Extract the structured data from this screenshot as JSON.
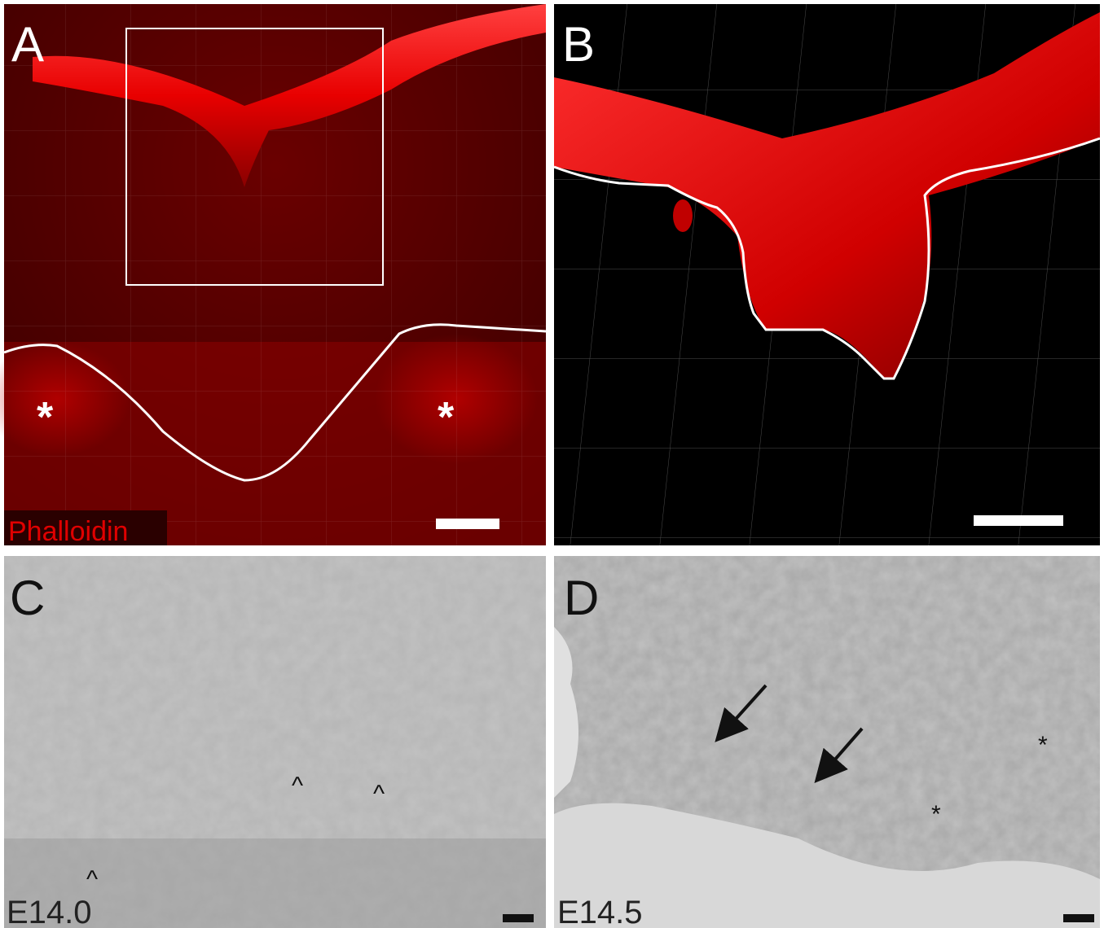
{
  "panels": [
    {
      "label": "A",
      "stain": "Phalloidin",
      "annotations": [
        "*",
        "*"
      ]
    },
    {
      "label": "B"
    },
    {
      "label": "C",
      "stage": "E14.0",
      "annotations": [
        "^",
        "^",
        "^"
      ]
    },
    {
      "label": "D",
      "stage": "E14.5",
      "annotations": [
        "*",
        "*"
      ]
    }
  ]
}
